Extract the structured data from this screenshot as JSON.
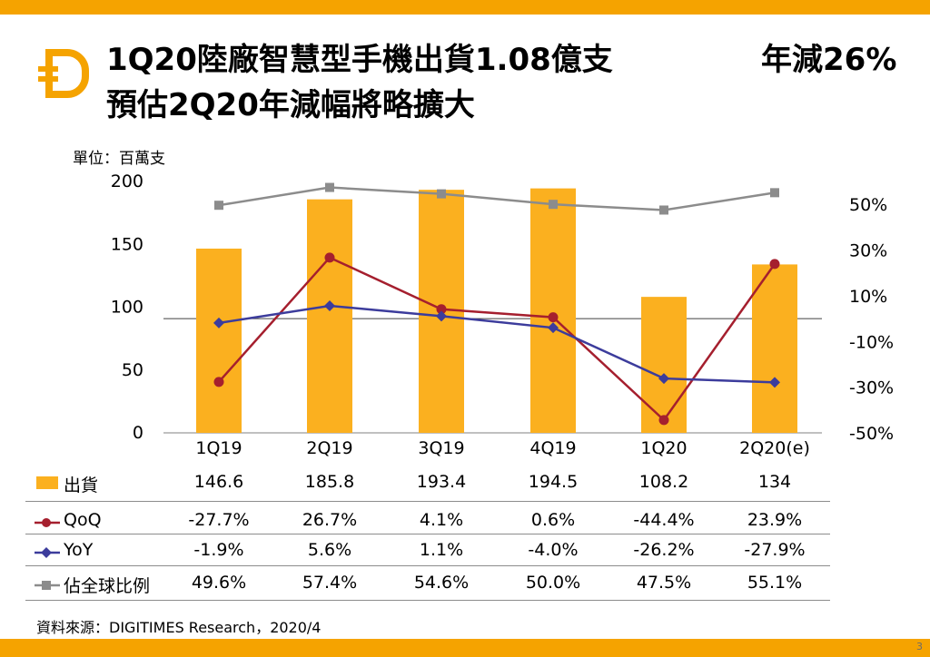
{
  "title_line1": "1Q20陸廠智慧型手機出貨1.08億支",
  "title_line1_right": "年減26%",
  "title_line2": "預估2Q20年減幅將略擴大",
  "unit_label": "單位：百萬支",
  "source": "資料來源：DIGITIMES Research，2020/4",
  "page_number": "3",
  "colors": {
    "bar": "#fbb01f",
    "qoq": "#a51f2e",
    "yoy": "#3c3c9c",
    "share": "#8c8c8c",
    "band": "#f5a300"
  },
  "chart_data": {
    "type": "bar",
    "categories": [
      "1Q19",
      "2Q19",
      "3Q19",
      "4Q19",
      "1Q20",
      "2Q20(e)"
    ],
    "y_left_ticks": [
      "0",
      "50",
      "100",
      "150",
      "200"
    ],
    "y_left_range": [
      0,
      200
    ],
    "y_right_ticks": [
      "-50%",
      "-30%",
      "-10%",
      "10%",
      "30%",
      "50%"
    ],
    "y_right_range": [
      -50,
      60
    ],
    "series": [
      {
        "name": "出貨",
        "kind": "bar",
        "axis": "left",
        "values": [
          146.6,
          185.8,
          193.4,
          194.5,
          108.2,
          134
        ],
        "labels": [
          "146.6",
          "185.8",
          "193.4",
          "194.5",
          "108.2",
          "134"
        ]
      },
      {
        "name": "QoQ",
        "kind": "line",
        "axis": "right",
        "values": [
          -27.7,
          26.7,
          4.1,
          0.6,
          -44.4,
          23.9
        ],
        "labels": [
          "-27.7%",
          "26.7%",
          "4.1%",
          "0.6%",
          "-44.4%",
          "23.9%"
        ]
      },
      {
        "name": "YoY",
        "kind": "line",
        "axis": "right",
        "values": [
          -1.9,
          5.6,
          1.1,
          -4.0,
          -26.2,
          -27.9
        ],
        "labels": [
          "-1.9%",
          "5.6%",
          "1.1%",
          "-4.0%",
          "-26.2%",
          "-27.9%"
        ]
      },
      {
        "name": "佔全球比例",
        "kind": "line",
        "axis": "right",
        "values": [
          49.6,
          57.4,
          54.6,
          50.0,
          47.5,
          55.1
        ],
        "labels": [
          "49.6%",
          "57.4%",
          "54.6%",
          "50.0%",
          "47.5%",
          "55.1%"
        ]
      }
    ]
  }
}
